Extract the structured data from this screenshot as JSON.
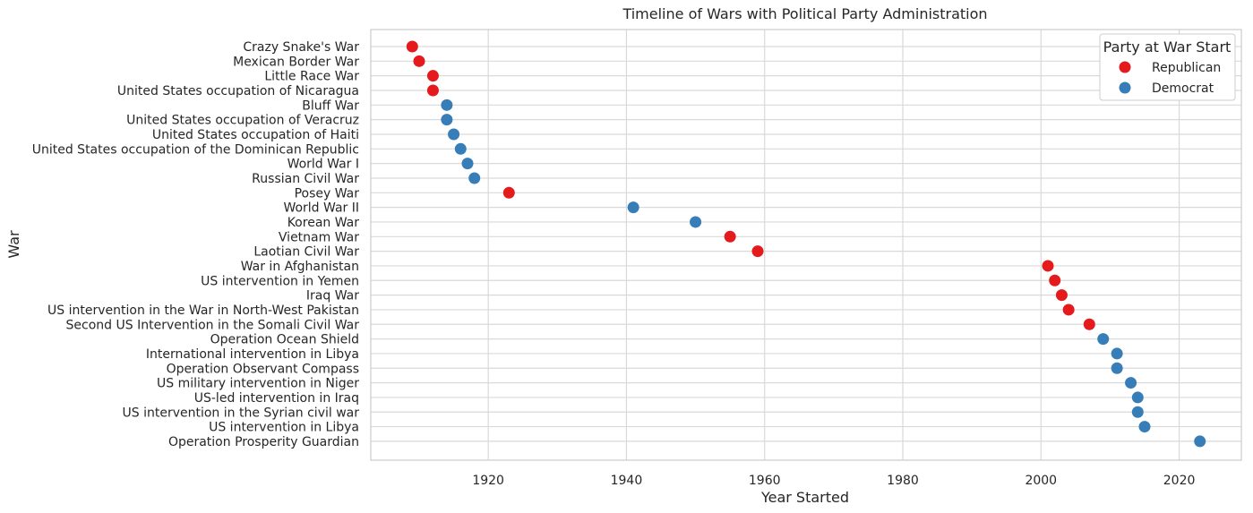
{
  "colors": {
    "Republican": "#e41a1c",
    "Democrat": "#377eb8"
  },
  "chart_data": {
    "type": "scatter",
    "title": "Timeline of Wars with Political Party Administration",
    "xlabel": "Year Started",
    "ylabel": "War",
    "xlim": [
      1903,
      2029
    ],
    "xticks": [
      1920,
      1940,
      1960,
      1980,
      2000,
      2020
    ],
    "grid": true,
    "legend": {
      "title": "Party at War Start",
      "placement": "top-right",
      "entries": [
        "Republican",
        "Democrat"
      ]
    },
    "points": [
      {
        "war": "Crazy Snake's War",
        "year": 1909,
        "party": "Republican"
      },
      {
        "war": "Mexican Border War",
        "year": 1910,
        "party": "Republican"
      },
      {
        "war": "Little Race War",
        "year": 1912,
        "party": "Republican"
      },
      {
        "war": "United States occupation of Nicaragua",
        "year": 1912,
        "party": "Republican"
      },
      {
        "war": "Bluff War",
        "year": 1914,
        "party": "Democrat"
      },
      {
        "war": "United States occupation of Veracruz",
        "year": 1914,
        "party": "Democrat"
      },
      {
        "war": "United States occupation of Haiti",
        "year": 1915,
        "party": "Democrat"
      },
      {
        "war": "United States occupation of the Dominican Republic",
        "year": 1916,
        "party": "Democrat"
      },
      {
        "war": "World War I",
        "year": 1917,
        "party": "Democrat"
      },
      {
        "war": "Russian Civil War",
        "year": 1918,
        "party": "Democrat"
      },
      {
        "war": "Posey War",
        "year": 1923,
        "party": "Republican"
      },
      {
        "war": "World War II",
        "year": 1941,
        "party": "Democrat"
      },
      {
        "war": "Korean War",
        "year": 1950,
        "party": "Democrat"
      },
      {
        "war": "Vietnam War",
        "year": 1955,
        "party": "Republican"
      },
      {
        "war": "Laotian Civil War",
        "year": 1959,
        "party": "Republican"
      },
      {
        "war": "War in Afghanistan",
        "year": 2001,
        "party": "Republican"
      },
      {
        "war": "US intervention in Yemen",
        "year": 2002,
        "party": "Republican"
      },
      {
        "war": "Iraq War",
        "year": 2003,
        "party": "Republican"
      },
      {
        "war": "US intervention in the War in North-West Pakistan",
        "year": 2004,
        "party": "Republican"
      },
      {
        "war": "Second US Intervention in the Somali Civil War",
        "year": 2007,
        "party": "Republican"
      },
      {
        "war": "Operation Ocean Shield",
        "year": 2009,
        "party": "Democrat"
      },
      {
        "war": "International intervention in Libya",
        "year": 2011,
        "party": "Democrat"
      },
      {
        "war": "Operation Observant Compass",
        "year": 2011,
        "party": "Democrat"
      },
      {
        "war": "US military intervention in Niger",
        "year": 2013,
        "party": "Democrat"
      },
      {
        "war": "US-led intervention in Iraq",
        "year": 2014,
        "party": "Democrat"
      },
      {
        "war": "US intervention in the Syrian civil war",
        "year": 2014,
        "party": "Democrat"
      },
      {
        "war": "US intervention in Libya",
        "year": 2015,
        "party": "Democrat"
      },
      {
        "war": "Operation Prosperity Guardian",
        "year": 2023,
        "party": "Democrat"
      }
    ]
  }
}
